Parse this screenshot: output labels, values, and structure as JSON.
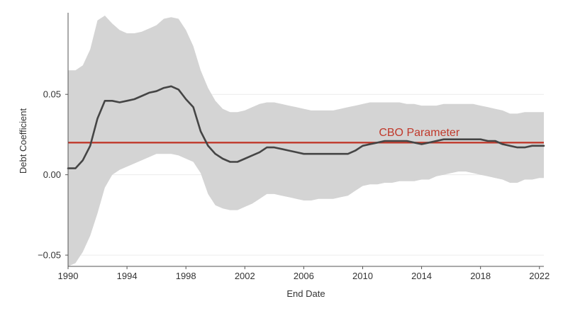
{
  "chart_data": {
    "type": "line",
    "xlabel": "End Date",
    "ylabel": "Debt Coefficient",
    "xlim": [
      1990,
      2022.3
    ],
    "ylim": [
      -0.057,
      0.099
    ],
    "x_ticks": [
      1990,
      1994,
      1998,
      2002,
      2006,
      2010,
      2014,
      2018,
      2022
    ],
    "y_ticks": [
      -0.05,
      0.0,
      0.05
    ],
    "y_tick_labels": [
      "−0.05",
      "0.00",
      "0.05"
    ],
    "grid": "horizontal",
    "colors": {
      "band": "#d4d4d4",
      "line": "#454545",
      "reference": "#c0392b",
      "axis": "#555555",
      "grid": "#ececec"
    },
    "annotation": {
      "text": "CBO Parameter",
      "x": 2011.1,
      "y": 0.024
    },
    "reference_line": {
      "y": 0.02
    },
    "series": [
      {
        "x": [
          1990,
          1990.5,
          1991,
          1991.5,
          1992,
          1992.5,
          1993,
          1993.5,
          1994,
          1994.5,
          1995,
          1995.5,
          1996,
          1996.5,
          1997,
          1997.5,
          1998,
          1998.5,
          1999,
          1999.5,
          2000,
          2000.5,
          2001,
          2001.5,
          2002,
          2002.5,
          2003,
          2003.5,
          2004,
          2004.5,
          2005,
          2005.5,
          2006,
          2006.5,
          2007,
          2007.5,
          2008,
          2008.5,
          2009,
          2009.5,
          2010,
          2010.5,
          2011,
          2011.5,
          2012,
          2012.5,
          2013,
          2013.5,
          2014,
          2014.5,
          2015,
          2015.5,
          2016,
          2016.5,
          2017,
          2017.5,
          2018,
          2018.5,
          2019,
          2019.5,
          2020,
          2020.5,
          2021,
          2021.5,
          2022,
          2022.3
        ],
        "values": [
          0.004,
          0.004,
          0.009,
          0.018,
          0.035,
          0.046,
          0.046,
          0.045,
          0.046,
          0.047,
          0.049,
          0.051,
          0.052,
          0.054,
          0.055,
          0.053,
          0.047,
          0.042,
          0.027,
          0.018,
          0.013,
          0.01,
          0.008,
          0.008,
          0.01,
          0.012,
          0.014,
          0.017,
          0.017,
          0.016,
          0.015,
          0.014,
          0.013,
          0.013,
          0.013,
          0.013,
          0.013,
          0.013,
          0.013,
          0.015,
          0.018,
          0.019,
          0.02,
          0.021,
          0.021,
          0.021,
          0.021,
          0.02,
          0.019,
          0.02,
          0.021,
          0.022,
          0.022,
          0.022,
          0.022,
          0.022,
          0.022,
          0.021,
          0.021,
          0.019,
          0.018,
          0.017,
          0.017,
          0.018,
          0.018,
          0.018
        ],
        "lower": [
          -0.057,
          -0.055,
          -0.048,
          -0.038,
          -0.024,
          -0.008,
          0.0,
          0.003,
          0.005,
          0.007,
          0.009,
          0.011,
          0.013,
          0.013,
          0.013,
          0.012,
          0.01,
          0.008,
          0.001,
          -0.012,
          -0.019,
          -0.021,
          -0.022,
          -0.022,
          -0.02,
          -0.018,
          -0.015,
          -0.012,
          -0.012,
          -0.013,
          -0.014,
          -0.015,
          -0.016,
          -0.016,
          -0.015,
          -0.015,
          -0.015,
          -0.014,
          -0.013,
          -0.01,
          -0.007,
          -0.006,
          -0.006,
          -0.005,
          -0.005,
          -0.004,
          -0.004,
          -0.004,
          -0.003,
          -0.003,
          -0.001,
          0.0,
          0.001,
          0.002,
          0.002,
          0.001,
          0.0,
          -0.001,
          -0.002,
          -0.003,
          -0.005,
          -0.005,
          -0.003,
          -0.003,
          -0.002,
          -0.002
        ],
        "upper": [
          0.065,
          0.065,
          0.068,
          0.078,
          0.096,
          0.099,
          0.094,
          0.09,
          0.088,
          0.088,
          0.089,
          0.091,
          0.093,
          0.097,
          0.098,
          0.097,
          0.09,
          0.08,
          0.065,
          0.054,
          0.046,
          0.041,
          0.039,
          0.039,
          0.04,
          0.042,
          0.044,
          0.045,
          0.045,
          0.044,
          0.043,
          0.042,
          0.041,
          0.04,
          0.04,
          0.04,
          0.04,
          0.041,
          0.042,
          0.043,
          0.044,
          0.045,
          0.045,
          0.045,
          0.045,
          0.045,
          0.044,
          0.044,
          0.043,
          0.043,
          0.043,
          0.044,
          0.044,
          0.044,
          0.044,
          0.044,
          0.043,
          0.042,
          0.041,
          0.04,
          0.038,
          0.038,
          0.039,
          0.039,
          0.039,
          0.039
        ]
      }
    ]
  }
}
